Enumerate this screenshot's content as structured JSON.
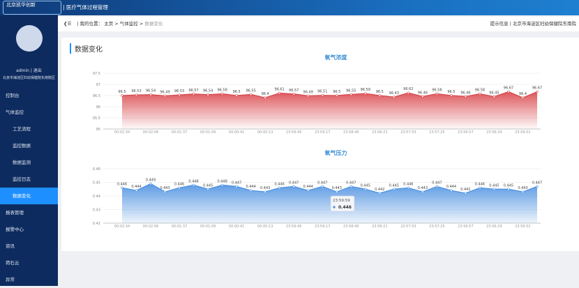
{
  "header": {
    "logo": "北京凯华创新",
    "title": "医疗气体过程管理"
  },
  "sidebar": {
    "user": "admin | 退出",
    "org": "北京市海淀区妇幼保健院东南院区",
    "menu": [
      "控制台",
      "气体监控",
      "工艺流程",
      "监控数据",
      "数据监测",
      "监控日志",
      "数据变化",
      "报表管理",
      "报警中心",
      "资讯",
      "荷石云",
      "异常"
    ]
  },
  "breadcrumb": {
    "label": "我的位置：",
    "items": [
      "主页",
      "气体监控",
      "数据变化"
    ],
    "tip": "提示信息",
    "org": "北京市海淀区妇幼保健院东南院"
  },
  "section_title": "数据变化",
  "chart_data": [
    {
      "type": "area",
      "title": "氧气浓度",
      "color": "#d9454a",
      "categories": [
        "00:02:34",
        null,
        "00:02:06",
        null,
        "00:01:37",
        null,
        "00:01:09",
        null,
        "00:00:41",
        null,
        "00:00:13",
        null,
        "23:59:45",
        null,
        "23:59:17",
        null,
        "23:58:49",
        null,
        "23:58:21",
        null,
        "23:57:53",
        null,
        "23:57:25",
        null,
        "23:56:57",
        null,
        "23:56:29",
        null,
        "23:56:01",
        null
      ],
      "values": [
        96.5,
        96.53,
        96.54,
        96.49,
        96.53,
        96.57,
        96.54,
        96.58,
        96.5,
        96.55,
        96.4,
        96.61,
        96.57,
        96.49,
        96.51,
        96.5,
        96.55,
        96.59,
        96.5,
        96.43,
        96.62,
        96.46,
        96.58,
        96.5,
        96.46,
        96.58,
        96.45,
        96.67,
        96.4,
        96.67
      ],
      "ylim": [
        95,
        97.5
      ],
      "yticks": [
        95,
        95.5,
        96,
        96.5,
        97,
        97.5
      ],
      "grid": true
    },
    {
      "type": "area",
      "title": "氧气压力",
      "color": "#4a8fe0",
      "categories": [
        "00:02:34",
        null,
        "00:02:06",
        null,
        "00:01:37",
        null,
        "00:01:09",
        null,
        "00:00:41",
        null,
        "00:00:13",
        null,
        "23:59:45",
        null,
        "23:59:17",
        null,
        "23:58:49",
        null,
        "23:58:21",
        null,
        "23:57:53",
        null,
        "23:57:25",
        null,
        "23:56:57",
        null,
        "23:56:29",
        null,
        "23:56:01",
        null
      ],
      "values": [
        0.446,
        0.444,
        0.449,
        0.443,
        0.446,
        0.448,
        0.445,
        0.448,
        0.447,
        0.444,
        0.443,
        0.446,
        0.447,
        0.444,
        0.447,
        0.443,
        0.447,
        0.445,
        0.442,
        0.445,
        0.446,
        0.443,
        0.447,
        0.444,
        0.442,
        0.446,
        0.445,
        0.445,
        0.443,
        0.447
      ],
      "ylim": [
        0.42,
        0.46
      ],
      "yticks": [
        0.42,
        0.43,
        0.44,
        0.45,
        0.46
      ],
      "grid": true,
      "tooltip": {
        "time": "23:59:59",
        "value": 0.446
      }
    }
  ]
}
